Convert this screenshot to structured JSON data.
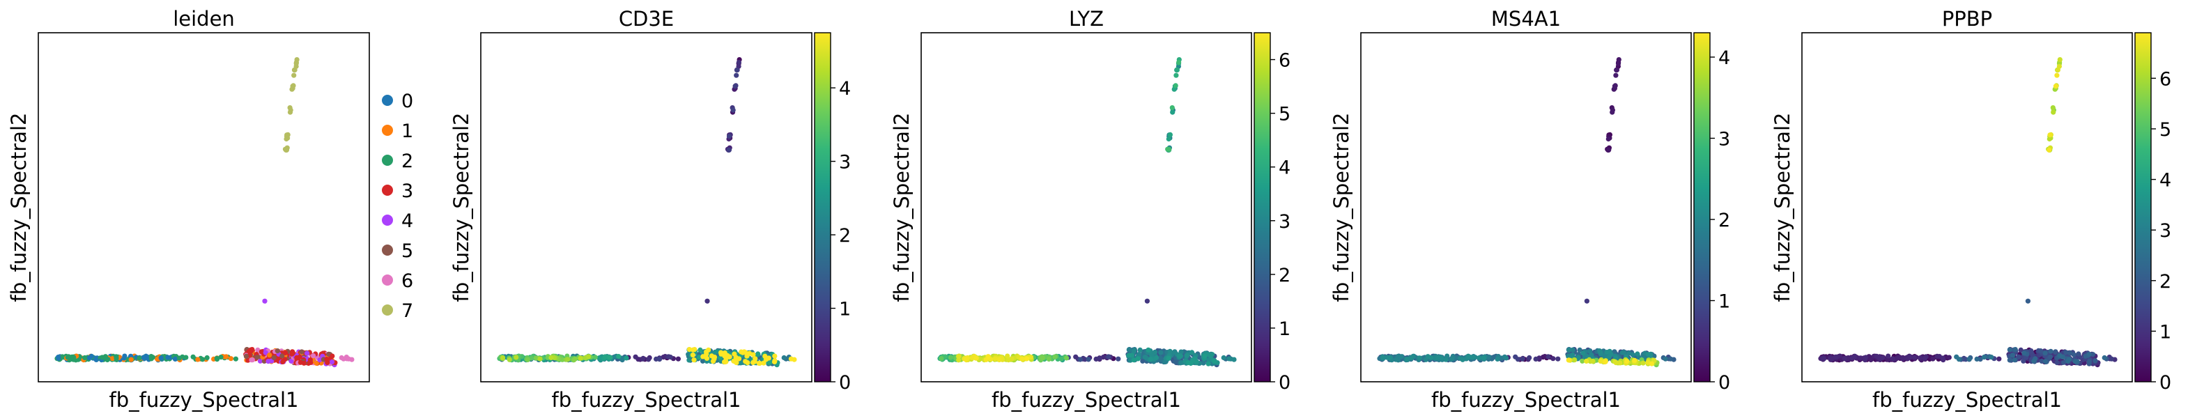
{
  "figure": {
    "background": "#ffffff"
  },
  "chart_data": [
    {
      "type": "scatter",
      "title": "leiden",
      "xlabel": "fb_fuzzy_Spectral1",
      "ylabel": "fb_fuzzy_Spectral2",
      "legend": {
        "placement": "right",
        "entries": [
          "0",
          "1",
          "2",
          "3",
          "4",
          "5",
          "6",
          "7"
        ],
        "colors": [
          "#1f77b4",
          "#ff7f0e",
          "#279e68",
          "#d62728",
          "#aa40fc",
          "#8c564b",
          "#e377c2",
          "#b5bd61"
        ]
      },
      "ticks": "none",
      "grid": false
    },
    {
      "type": "scatter",
      "title": "CD3E",
      "xlabel": "fb_fuzzy_Spectral1",
      "ylabel": "fb_fuzzy_Spectral2",
      "colorbar": {
        "cmap": "viridis",
        "range": [
          0,
          4.75
        ],
        "ticks": [
          "0",
          "1",
          "2",
          "3",
          "4"
        ]
      },
      "ticks": "none",
      "grid": false
    },
    {
      "type": "scatter",
      "title": "LYZ",
      "xlabel": "fb_fuzzy_Spectral1",
      "ylabel": "fb_fuzzy_Spectral2",
      "colorbar": {
        "cmap": "viridis",
        "range": [
          0,
          6.5
        ],
        "ticks": [
          "0",
          "1",
          "2",
          "3",
          "4",
          "5",
          "6"
        ]
      },
      "ticks": "none",
      "grid": false
    },
    {
      "type": "scatter",
      "title": "MS4A1",
      "xlabel": "fb_fuzzy_Spectral1",
      "ylabel": "fb_fuzzy_Spectral2",
      "colorbar": {
        "cmap": "viridis",
        "range": [
          0,
          4.3
        ],
        "ticks": [
          "0",
          "1",
          "2",
          "3",
          "4"
        ]
      },
      "ticks": "none",
      "grid": false
    },
    {
      "type": "scatter",
      "title": "PPBP",
      "xlabel": "fb_fuzzy_Spectral1",
      "ylabel": "fb_fuzzy_Spectral2",
      "colorbar": {
        "cmap": "viridis",
        "range": [
          0,
          6.9
        ],
        "ticks": [
          "0",
          "1",
          "2",
          "3",
          "4",
          "5",
          "6"
        ]
      },
      "ticks": "none",
      "grid": false
    }
  ]
}
